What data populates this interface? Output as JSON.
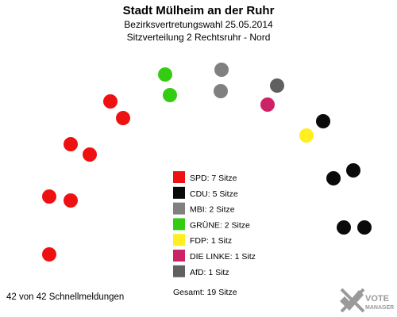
{
  "header": {
    "title": "Stadt Mülheim an der Ruhr",
    "subtitle1": "Bezirksvertretungswahl 25.05.2014",
    "subtitle2": "Sitzverteilung 2 Rechtsruhr - Nord"
  },
  "chart_data": {
    "type": "parliament",
    "title": "Stadt Mülheim an der Ruhr",
    "series": [
      {
        "name": "SPD",
        "seats": 7,
        "color": "#ee1111",
        "label": "SPD: 7 Sitze"
      },
      {
        "name": "CDU",
        "seats": 5,
        "color": "#0a0a0a",
        "label": "CDU: 5 Sitze"
      },
      {
        "name": "MBI",
        "seats": 2,
        "color": "#808080",
        "label": "MBI: 2 Sitze"
      },
      {
        "name": "GRÜNE",
        "seats": 2,
        "color": "#33cc11",
        "label": "GRÜNE: 2 Sitze"
      },
      {
        "name": "FDP",
        "seats": 1,
        "color": "#ffee22",
        "label": "FDP: 1 Sitz"
      },
      {
        "name": "DIE LINKE",
        "seats": 1,
        "color": "#cc2266",
        "label": "DIE LINKE: 1 Sitz"
      },
      {
        "name": "AfD",
        "seats": 1,
        "color": "#606060",
        "label": "AfD: 1 Sitz"
      }
    ],
    "seat_order": [
      "SPD",
      "SPD",
      "SPD",
      "SPD",
      "SPD",
      "SPD",
      "SPD",
      "GRÜNE",
      "GRÜNE",
      "MBI",
      "MBI",
      "AfD",
      "DIE LINKE",
      "FDP",
      "CDU",
      "CDU",
      "CDU",
      "CDU",
      "CDU"
    ],
    "total_label": "Gesamt: 19 Sitze",
    "total_seats": 19
  },
  "footer": {
    "status": "42 von 42 Schnellmeldungen",
    "logo_text_top": "VOTE",
    "logo_text_bottom": "MANAGER"
  }
}
